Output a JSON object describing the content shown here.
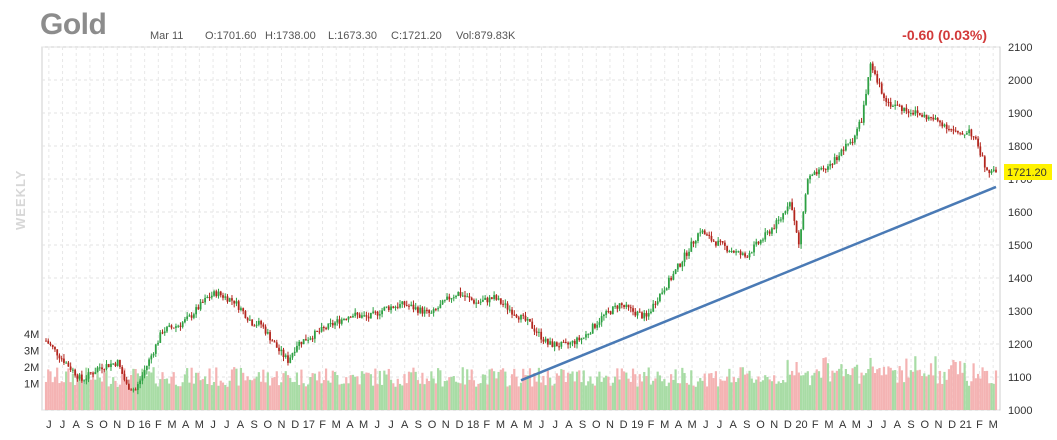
{
  "header": {
    "title": "Gold",
    "date": "Mar 11",
    "open": "O:1701.60",
    "high": "H:1738.00",
    "low": "L:1673.30",
    "close": "C:1721.20",
    "volume": "Vol:879.83K",
    "change": "-0.60 (0.03%)"
  },
  "period_label": "WEEKLY",
  "last_price_badge": "1721.20",
  "colors": {
    "up": "#2ea043",
    "down": "#b3261e",
    "vol_up": "#a8dca5",
    "vol_down": "#f4b3b3",
    "trendline": "#4a7ab5",
    "badge": "#fff200"
  },
  "chart_data": {
    "type": "candlestick",
    "y_axis": {
      "min": 1000,
      "max": 2100,
      "ticks": [
        1000,
        1100,
        1200,
        1300,
        1400,
        1500,
        1600,
        1700,
        1800,
        1900,
        2000,
        2100
      ],
      "position": "right"
    },
    "volume_axis": {
      "ticks": [
        "1M",
        "2M",
        "3M",
        "4M"
      ],
      "tick_values": [
        1,
        2,
        3,
        4
      ],
      "position": "left"
    },
    "x_labels": [
      "J",
      "J",
      "A",
      "S",
      "O",
      "N",
      "D",
      "16",
      "F",
      "M",
      "A",
      "M",
      "J",
      "J",
      "A",
      "S",
      "O",
      "N",
      "D",
      "17",
      "F",
      "M",
      "A",
      "M",
      "J",
      "J",
      "A",
      "S",
      "O",
      "N",
      "D",
      "18",
      "F",
      "M",
      "A",
      "M",
      "J",
      "J",
      "A",
      "S",
      "O",
      "N",
      "D",
      "19",
      "F",
      "M",
      "A",
      "M",
      "J",
      "J",
      "A",
      "S",
      "O",
      "N",
      "D",
      "20",
      "F",
      "M",
      "A",
      "M",
      "J",
      "J",
      "A",
      "S",
      "O",
      "N",
      "D",
      "21",
      "F",
      "M"
    ],
    "price_path": [
      [
        0,
        1210
      ],
      [
        2,
        1150
      ],
      [
        4,
        1090
      ],
      [
        6,
        1130
      ],
      [
        8,
        1145
      ],
      [
        9,
        1075
      ],
      [
        10,
        1060
      ],
      [
        11,
        1120
      ],
      [
        13,
        1240
      ],
      [
        15,
        1260
      ],
      [
        16,
        1280
      ],
      [
        18,
        1340
      ],
      [
        19,
        1355
      ],
      [
        21,
        1330
      ],
      [
        23,
        1265
      ],
      [
        24,
        1260
      ],
      [
        26,
        1180
      ],
      [
        27,
        1150
      ],
      [
        28,
        1200
      ],
      [
        30,
        1230
      ],
      [
        32,
        1260
      ],
      [
        34,
        1290
      ],
      [
        36,
        1280
      ],
      [
        38,
        1310
      ],
      [
        40,
        1320
      ],
      [
        42,
        1300
      ],
      [
        43,
        1290
      ],
      [
        45,
        1340
      ],
      [
        46,
        1355
      ],
      [
        48,
        1325
      ],
      [
        50,
        1340
      ],
      [
        52,
        1300
      ],
      [
        54,
        1260
      ],
      [
        55,
        1230
      ],
      [
        56,
        1200
      ],
      [
        58,
        1195
      ],
      [
        60,
        1220
      ],
      [
        62,
        1280
      ],
      [
        64,
        1320
      ],
      [
        65,
        1305
      ],
      [
        67,
        1280
      ],
      [
        68,
        1330
      ],
      [
        70,
        1410
      ],
      [
        72,
        1500
      ],
      [
        73,
        1545
      ],
      [
        74,
        1520
      ],
      [
        76,
        1490
      ],
      [
        78,
        1465
      ],
      [
        80,
        1520
      ],
      [
        82,
        1580
      ],
      [
        83,
        1640
      ],
      [
        84,
        1500
      ],
      [
        85,
        1700
      ],
      [
        87,
        1730
      ],
      [
        89,
        1790
      ],
      [
        90,
        1820
      ],
      [
        91,
        1880
      ],
      [
        92,
        2040
      ],
      [
        93,
        1980
      ],
      [
        94,
        1930
      ],
      [
        96,
        1910
      ],
      [
        98,
        1890
      ],
      [
        100,
        1870
      ],
      [
        102,
        1830
      ],
      [
        103,
        1850
      ],
      [
        104,
        1800
      ],
      [
        105,
        1720
      ]
    ],
    "last_close": 1721.2,
    "trendline": {
      "from_index": 53,
      "from_price": 1090,
      "to_index": 106,
      "to_price": 1676
    }
  }
}
